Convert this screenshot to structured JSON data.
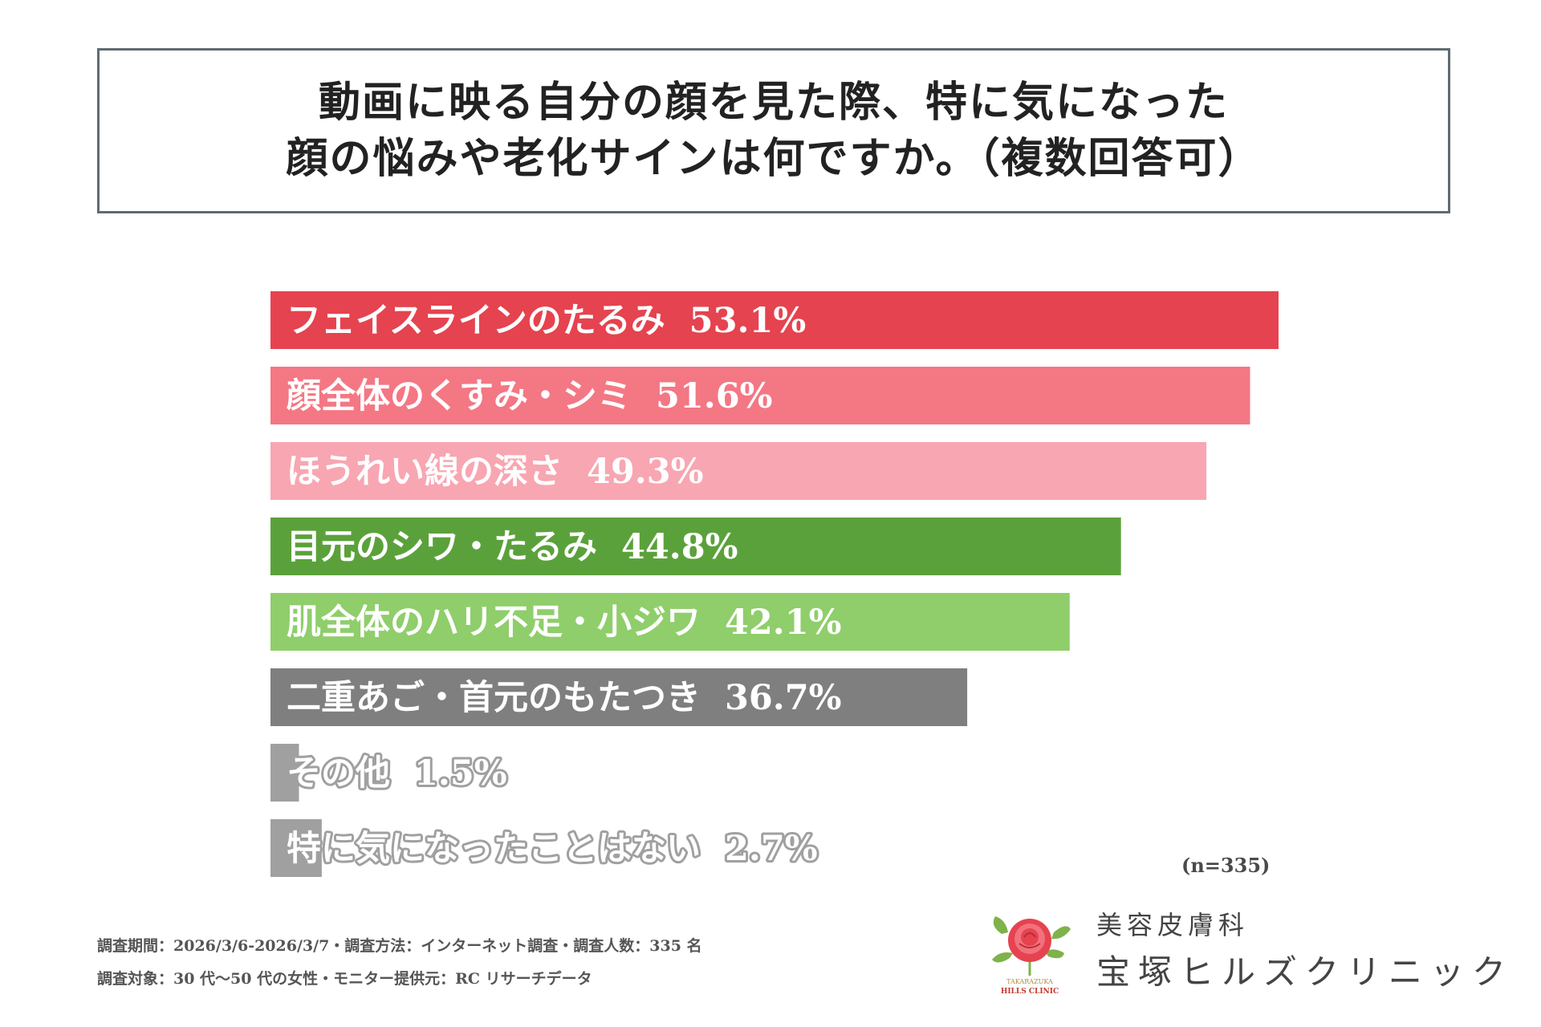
{
  "chart_data": {
    "type": "bar",
    "orientation": "horizontal",
    "title_lines": [
      "動画に映る自分の顔を見た際、特に気になった",
      "顔の悩みや老化サインは何ですか。（複数回答可）"
    ],
    "categories": [
      "フェイスラインのたるみ",
      "顔全体のくすみ・シミ",
      "ほうれい線の深さ",
      "目元のシワ・たるみ",
      "肌全体のハリ不足・小ジワ",
      "二重あご・首元のもたつき",
      "その他",
      "特に気になったことはない"
    ],
    "values": [
      53.1,
      51.6,
      49.3,
      44.8,
      42.1,
      36.7,
      1.5,
      2.7
    ],
    "value_labels": [
      "53.1%",
      "51.6%",
      "49.3%",
      "44.8%",
      "42.1%",
      "36.7%",
      "1.5%",
      "2.7%"
    ],
    "colors": [
      "#e5434f",
      "#f47784",
      "#f8a6b2",
      "#5ba13b",
      "#8fce6b",
      "#7f7f7f",
      "#a0a0a0",
      "#a0a0a0"
    ],
    "xlim": [
      0,
      53.1
    ],
    "sample_size": "(n=335)"
  },
  "footer": {
    "line1": "調査期間：2026/3/6-2026/3/7・調査方法：インターネット調査・調査人数：335 名",
    "line2": "調査対象：30 代〜50 代の女性・モニター提供元：RC リサーチデータ"
  },
  "clinic": {
    "type": "美容皮膚科",
    "name": "宝塚ヒルズクリニック",
    "logo_text_top": "TAKARAZUKA",
    "logo_text_bottom": "HILLS CLINIC"
  }
}
